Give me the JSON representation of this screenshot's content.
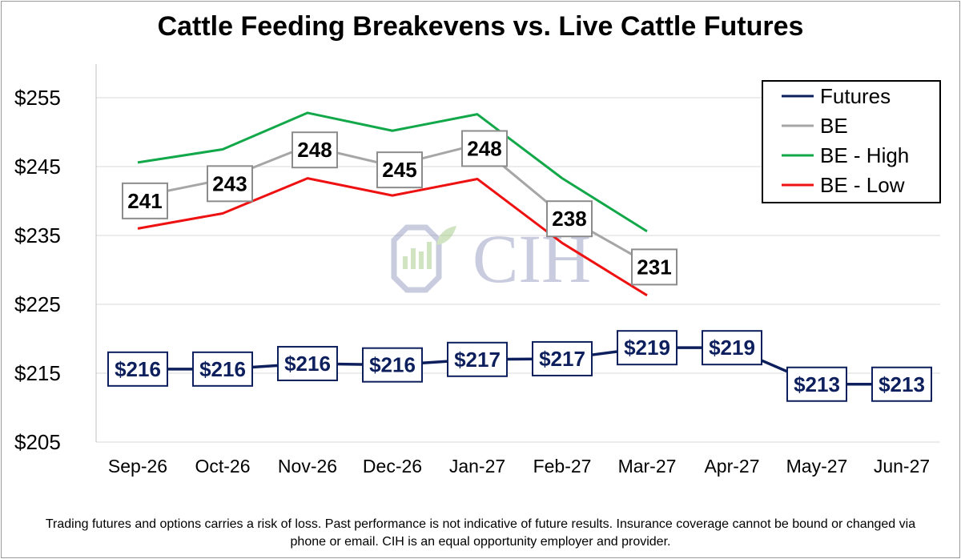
{
  "page": {
    "footer": "Trading futures and options carries a risk of loss. Past performance is not indicative of future results. Insurance coverage cannot be bound or changed via phone or email. CIH is an equal opportunity employer and provider.",
    "watermark": "CIH"
  },
  "chart_data": {
    "type": "line",
    "title": "Cattle Feeding Breakevens vs. Live Cattle Futures",
    "xlabel": "",
    "ylabel": "",
    "categories": [
      "Sep-26",
      "Oct-26",
      "Nov-26",
      "Dec-26",
      "Jan-27",
      "Feb-27",
      "Mar-27",
      "Apr-27",
      "May-27",
      "Jun-27"
    ],
    "y_ticks": [
      "$205",
      "$215",
      "$225",
      "$235",
      "$245",
      "$255"
    ],
    "ylim": [
      205,
      260
    ],
    "grid": true,
    "legend_position": "top-right",
    "series": [
      {
        "name": "Futures",
        "color": "#0d1f5c",
        "values": [
          215.6,
          215.6,
          216.4,
          216.2,
          217.0,
          217.1,
          218.7,
          218.7,
          213.4,
          213.4
        ],
        "labels": [
          "$216",
          "$216",
          "$216",
          "$216",
          "$217",
          "$217",
          "$219",
          "$219",
          "$213",
          "$213"
        ]
      },
      {
        "name": "BE",
        "color": "#a6a6a6",
        "values": [
          240.6,
          243.1,
          248.0,
          245.1,
          248.2,
          238.0,
          231.0,
          null,
          null,
          null
        ],
        "labels": [
          "241",
          "243",
          "248",
          "245",
          "248",
          "238",
          "231",
          null,
          null,
          null
        ]
      },
      {
        "name": "BE - High",
        "color": "#12a84a",
        "values": [
          245.6,
          247.5,
          252.8,
          250.2,
          252.6,
          243.3,
          235.6,
          null,
          null,
          null
        ]
      },
      {
        "name": "BE - Low",
        "color": "#ee1111",
        "values": [
          236.0,
          238.2,
          243.3,
          240.8,
          243.2,
          233.9,
          226.3,
          null,
          null,
          null
        ]
      }
    ]
  }
}
